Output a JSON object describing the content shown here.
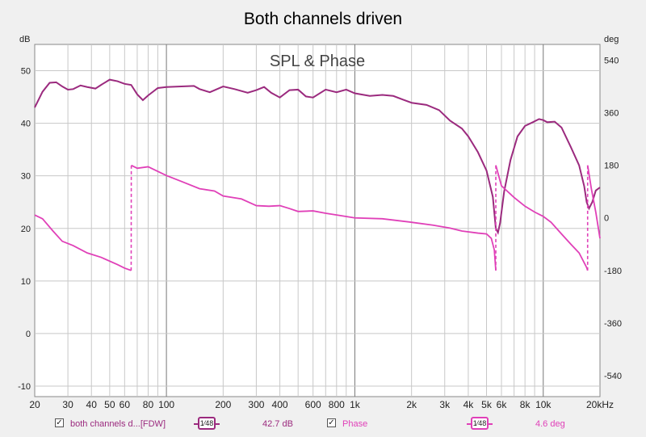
{
  "chart_data": {
    "type": "line",
    "title": "Both channels driven",
    "subtitle": "SPL & Phase",
    "x_scale": "log",
    "x_unit": "Hz",
    "xlim": [
      20,
      20000
    ],
    "x_tick_labels": [
      "20",
      "30",
      "40",
      "50",
      "60",
      "80",
      "100",
      "200",
      "300",
      "400",
      "600",
      "800",
      "1k",
      "2k",
      "3k",
      "4k",
      "5k",
      "6k",
      "8k",
      "10k",
      "20kHz"
    ],
    "x_tick_values": [
      20,
      30,
      40,
      50,
      60,
      80,
      100,
      200,
      300,
      400,
      600,
      800,
      1000,
      2000,
      3000,
      4000,
      5000,
      6000,
      8000,
      10000,
      20000
    ],
    "y_left_label": "dB",
    "ylim_left": [
      -12,
      55
    ],
    "y_left_ticks": [
      50,
      40,
      30,
      20,
      10,
      0,
      -10
    ],
    "y_right_label": "deg",
    "ylim_right": [
      -612,
      594
    ],
    "y_right_ticks": [
      540,
      360,
      180,
      0,
      -180,
      -360,
      -540
    ],
    "grid": true,
    "series": [
      {
        "name": "both channels d...[FDW]",
        "axis": "left",
        "color": "#9b2a7e",
        "points": [
          [
            20,
            43
          ],
          [
            22,
            46
          ],
          [
            24,
            47.7
          ],
          [
            26,
            47.8
          ],
          [
            28,
            47
          ],
          [
            30,
            46.4
          ],
          [
            32,
            46.5
          ],
          [
            35,
            47.2
          ],
          [
            38,
            46.9
          ],
          [
            42,
            46.6
          ],
          [
            45,
            47.3
          ],
          [
            50,
            48.3
          ],
          [
            55,
            48
          ],
          [
            60,
            47.5
          ],
          [
            65,
            47.3
          ],
          [
            70,
            45.5
          ],
          [
            75,
            44.4
          ],
          [
            80,
            45.3
          ],
          [
            90,
            46.7
          ],
          [
            100,
            46.9
          ],
          [
            120,
            47
          ],
          [
            140,
            47.1
          ],
          [
            150,
            46.5
          ],
          [
            170,
            45.9
          ],
          [
            200,
            47
          ],
          [
            230,
            46.5
          ],
          [
            270,
            45.8
          ],
          [
            300,
            46.3
          ],
          [
            330,
            46.9
          ],
          [
            360,
            45.8
          ],
          [
            400,
            44.9
          ],
          [
            450,
            46.3
          ],
          [
            500,
            46.4
          ],
          [
            550,
            45.1
          ],
          [
            600,
            44.9
          ],
          [
            700,
            46.4
          ],
          [
            800,
            45.9
          ],
          [
            900,
            46.4
          ],
          [
            1000,
            45.7
          ],
          [
            1200,
            45.2
          ],
          [
            1400,
            45.4
          ],
          [
            1600,
            45.2
          ],
          [
            1800,
            44.5
          ],
          [
            2000,
            43.9
          ],
          [
            2400,
            43.5
          ],
          [
            2800,
            42.5
          ],
          [
            3200,
            40.5
          ],
          [
            3700,
            39
          ],
          [
            4000,
            37.5
          ],
          [
            4500,
            34.5
          ],
          [
            5000,
            31
          ],
          [
            5400,
            26
          ],
          [
            5600,
            20
          ],
          [
            5750,
            19.2
          ],
          [
            5900,
            21
          ],
          [
            6200,
            27
          ],
          [
            6700,
            33
          ],
          [
            7300,
            37.5
          ],
          [
            8000,
            39.5
          ],
          [
            8800,
            40.2
          ],
          [
            9500,
            40.8
          ],
          [
            10000,
            40.6
          ],
          [
            10500,
            40.2
          ],
          [
            11500,
            40.3
          ],
          [
            12500,
            39.2
          ],
          [
            14000,
            35.5
          ],
          [
            15500,
            32
          ],
          [
            16500,
            28
          ],
          [
            17000,
            25
          ],
          [
            17500,
            23.8
          ],
          [
            18200,
            25
          ],
          [
            19000,
            27.2
          ],
          [
            20000,
            27.8
          ]
        ]
      },
      {
        "name": "Phase",
        "axis": "right",
        "color": "#e040b8",
        "points": [
          [
            20,
            10
          ],
          [
            22,
            -3
          ],
          [
            25,
            -45
          ],
          [
            28,
            -80
          ],
          [
            32,
            -95
          ],
          [
            38,
            -120
          ],
          [
            45,
            -135
          ],
          [
            55,
            -160
          ],
          [
            60,
            -172
          ],
          [
            65,
            -180
          ],
          [
            65.1,
            180
          ],
          [
            70,
            170
          ],
          [
            80,
            175
          ],
          [
            100,
            145
          ],
          [
            120,
            125
          ],
          [
            150,
            100
          ],
          [
            180,
            92
          ],
          [
            200,
            75
          ],
          [
            250,
            65
          ],
          [
            300,
            42
          ],
          [
            350,
            40
          ],
          [
            400,
            42
          ],
          [
            450,
            32
          ],
          [
            500,
            22
          ],
          [
            600,
            24
          ],
          [
            700,
            16
          ],
          [
            800,
            10
          ],
          [
            1000,
            0
          ],
          [
            1400,
            -3
          ],
          [
            2000,
            -15
          ],
          [
            2600,
            -25
          ],
          [
            3200,
            -35
          ],
          [
            3700,
            -45
          ],
          [
            4500,
            -52
          ],
          [
            5000,
            -55
          ],
          [
            5300,
            -70
          ],
          [
            5500,
            -110
          ],
          [
            5600,
            -180
          ],
          [
            5601,
            180
          ],
          [
            6000,
            110
          ],
          [
            7000,
            70
          ],
          [
            8000,
            40
          ],
          [
            9000,
            20
          ],
          [
            10000,
            5
          ],
          [
            11000,
            -15
          ],
          [
            12500,
            -55
          ],
          [
            14000,
            -90
          ],
          [
            15500,
            -120
          ],
          [
            17000,
            -170
          ],
          [
            17200,
            -180
          ],
          [
            17201,
            180
          ],
          [
            18000,
            100
          ],
          [
            19000,
            20
          ],
          [
            20000,
            -70
          ]
        ]
      }
    ]
  },
  "legend": {
    "series1_label": "both channels d...[FDW]",
    "series1_smoothing": "1⁄48",
    "series1_value": "42.7 dB",
    "series2_label": "Phase",
    "series2_smoothing": "1⁄48",
    "series2_value": "4.6 deg",
    "checkmark": "✓"
  }
}
